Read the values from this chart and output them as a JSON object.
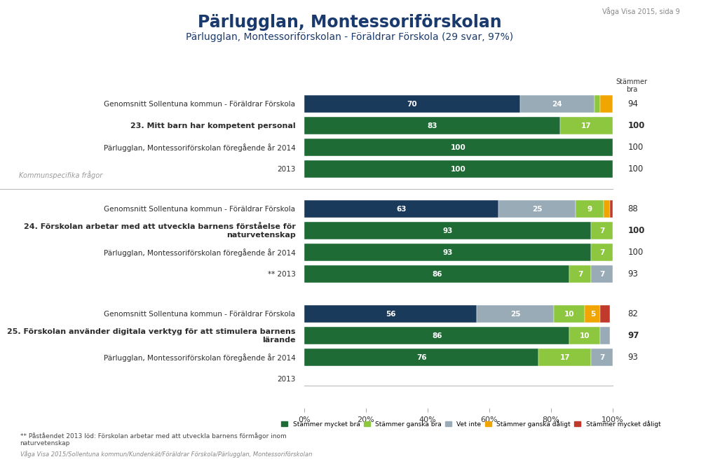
{
  "title": "Pärlugglan, Montessoriförskolan",
  "subtitle": "Pärlugglan, Montessoriförskolan - Föräldrar Förskola (29 svar, 97%)",
  "watermark": "Våga Visa 2015, sida 9",
  "footer_left": "Våga Visa 2015/Sollentuna kommun/Kundenkät/Föräldrar Förskola/Pärlugglan, Montessoriförskolan",
  "footer_note": "** Påståendet 2013 löd: Förskolan arbetar med att utveckla barnens förmågor inom\nnaturvetenskap",
  "col_header": "Stämmer\nbra",
  "legend_labels": [
    "Stämmer mycket bra",
    "Stämmer ganska bra",
    "Vet inte",
    "Stämmer ganska dåligt",
    "Stämmer mycket dåligt"
  ],
  "legend_colors": [
    "#1a5c2e",
    "#2e8b3e",
    "#b0b8c0",
    "#f0a500",
    "#c0392b"
  ],
  "smb_color": "#1a3a5c",
  "sgb_color": "#2d7a3a",
  "vet_color": "#9aabb8",
  "sgd_color": "#f0a500",
  "smd_color": "#c0392b",
  "navy": "#1a3a5c",
  "dark_green": "#1e6b35",
  "light_green": "#8dc63f",
  "gray": "#9aabb8",
  "orange": "#f0a500",
  "red": "#c0392b",
  "bars": [
    {
      "label": "Genomsnitt Sollentuna kommun - Föräldrar Förskola",
      "bold": false,
      "segments": [
        [
          70,
          "navy"
        ],
        [
          24,
          "gray"
        ],
        [
          2,
          "light_green"
        ],
        [
          4,
          "orange"
        ],
        [
          1,
          "red"
        ]
      ],
      "score": "94",
      "score_bold": false,
      "group": 0,
      "has_bar": true
    },
    {
      "label": "23. Mitt barn har kompetent personal",
      "bold": true,
      "segments": [
        [
          83,
          "dark_green"
        ],
        [
          17,
          "light_green"
        ]
      ],
      "score": "100",
      "score_bold": true,
      "group": 0,
      "has_bar": true
    },
    {
      "label": "Pärlugglan, Montessoriförskolan föregående år 2014",
      "bold": false,
      "segments": [
        [
          100,
          "dark_green"
        ],
        [
          0,
          "light_green"
        ]
      ],
      "score": "100",
      "score_bold": false,
      "group": 0,
      "has_bar": true
    },
    {
      "label": "2013",
      "bold": false,
      "segments": [
        [
          100,
          "dark_green"
        ]
      ],
      "score": "100",
      "score_bold": false,
      "group": 0,
      "has_bar": true
    },
    {
      "label": "Genomsnitt Sollentuna kommun - Föräldrar Förskola",
      "bold": false,
      "segments": [
        [
          63,
          "navy"
        ],
        [
          25,
          "gray"
        ],
        [
          9,
          "light_green"
        ],
        [
          2,
          "orange"
        ],
        [
          1,
          "red"
        ]
      ],
      "score": "88",
      "score_bold": false,
      "group": 1,
      "has_bar": true
    },
    {
      "label": "24. Förskolan arbetar med att utveckla barnens förståelse för\nnaturvetenskap",
      "bold": true,
      "segments": [
        [
          93,
          "dark_green"
        ],
        [
          7,
          "light_green"
        ]
      ],
      "score": "100",
      "score_bold": true,
      "group": 1,
      "has_bar": true
    },
    {
      "label": "Pärlugglan, Montessoriförskolan föregående år 2014",
      "bold": false,
      "segments": [
        [
          93,
          "dark_green"
        ],
        [
          7,
          "light_green"
        ]
      ],
      "score": "100",
      "score_bold": false,
      "group": 1,
      "has_bar": true
    },
    {
      "label": "** 2013",
      "bold": false,
      "segments": [
        [
          86,
          "dark_green"
        ],
        [
          7,
          "light_green"
        ],
        [
          7,
          "gray"
        ]
      ],
      "score": "93",
      "score_bold": false,
      "group": 1,
      "has_bar": true
    },
    {
      "label": "Genomsnitt Sollentuna kommun - Föräldrar Förskola",
      "bold": false,
      "segments": [
        [
          56,
          "navy"
        ],
        [
          25,
          "gray"
        ],
        [
          10,
          "light_green"
        ],
        [
          5,
          "orange"
        ],
        [
          3,
          "red"
        ]
      ],
      "score": "82",
      "score_bold": false,
      "group": 2,
      "has_bar": true
    },
    {
      "label": "25. Förskolan använder digitala verktyg för att stimulera barnens\nlärande",
      "bold": true,
      "segments": [
        [
          86,
          "dark_green"
        ],
        [
          10,
          "light_green"
        ],
        [
          3,
          "gray"
        ]
      ],
      "score": "97",
      "score_bold": true,
      "group": 2,
      "has_bar": true
    },
    {
      "label": "Pärlugglan, Montessoriförskolan föregående år 2014",
      "bold": false,
      "segments": [
        [
          76,
          "dark_green"
        ],
        [
          17,
          "light_green"
        ],
        [
          7,
          "gray"
        ]
      ],
      "score": "93",
      "score_bold": false,
      "group": 2,
      "has_bar": true
    },
    {
      "label": "2013",
      "bold": false,
      "segments": [],
      "score": null,
      "score_bold": false,
      "group": 2,
      "has_bar": false
    }
  ]
}
